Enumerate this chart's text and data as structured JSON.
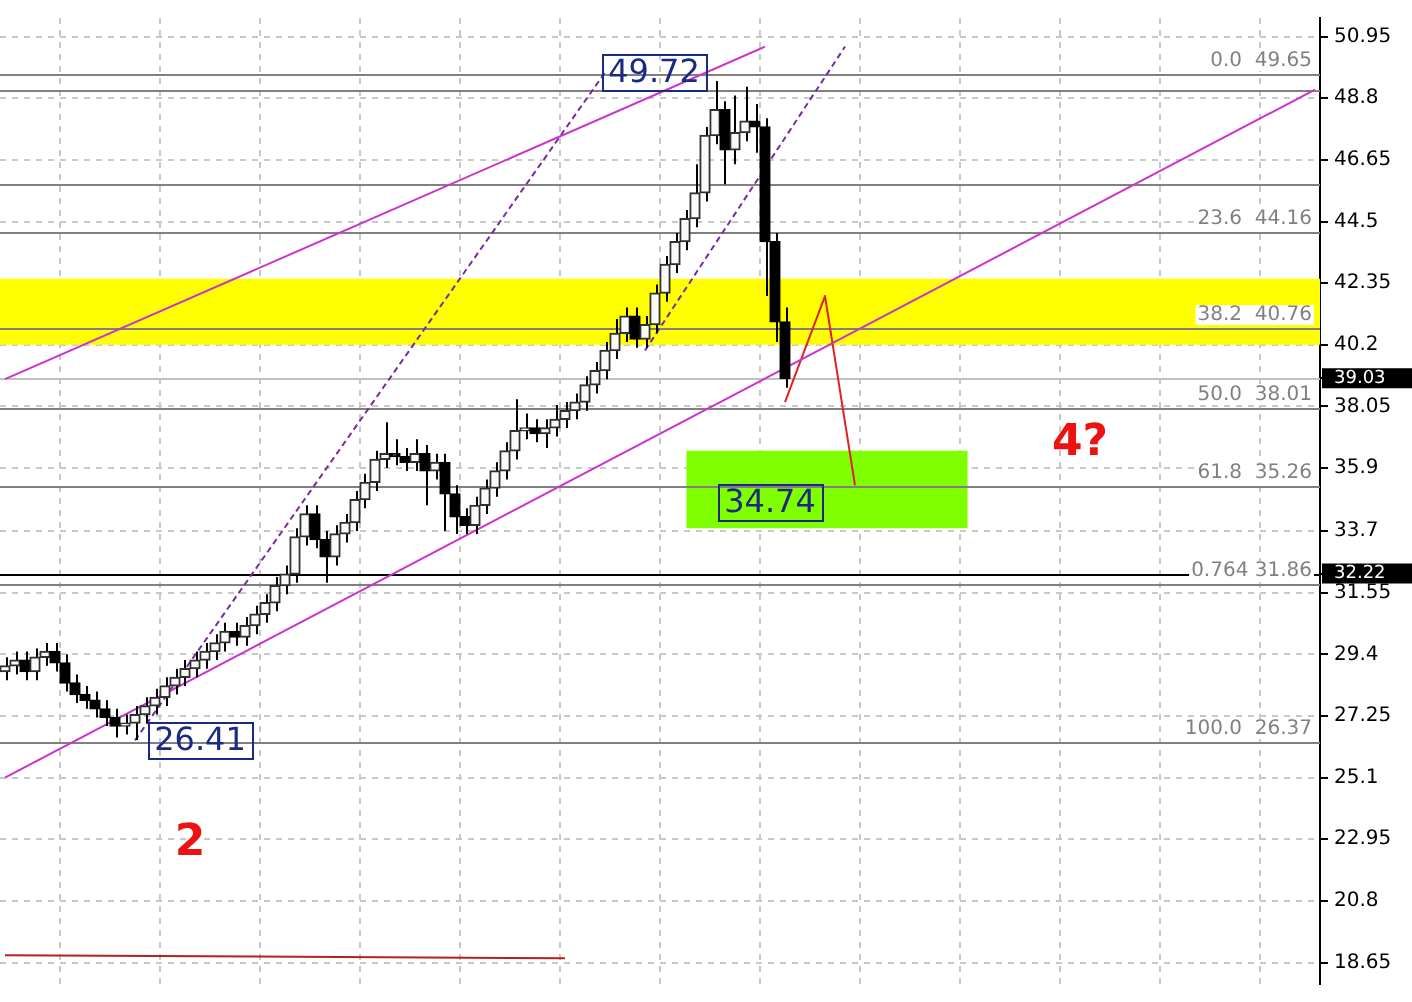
{
  "chart_data": {
    "type": "candlestick",
    "categories": [
      null,
      null,
      null,
      null,
      null,
      null,
      null,
      null,
      null,
      null,
      null,
      null,
      null,
      null,
      null,
      null,
      null,
      null,
      null,
      null,
      null,
      null,
      null,
      null,
      null,
      null,
      null,
      null,
      null,
      null,
      null,
      null,
      null,
      null,
      null,
      null,
      null,
      null,
      null,
      null,
      null,
      null,
      null,
      null,
      null,
      null,
      null,
      null,
      null,
      null,
      null,
      null,
      null,
      null,
      null,
      null,
      null,
      null,
      null,
      null,
      null,
      null,
      null,
      null,
      null,
      null,
      null,
      null,
      null,
      null,
      null,
      null,
      null,
      null,
      null,
      null,
      null,
      null,
      null,
      null,
      null,
      null,
      null,
      null,
      null,
      null,
      null,
      null,
      null,
      null,
      null,
      null,
      null,
      null,
      null,
      null,
      null,
      null,
      null,
      null,
      null,
      null,
      null,
      null,
      null,
      null,
      null,
      null,
      null,
      null,
      null,
      null,
      null,
      null,
      null,
      null,
      null,
      null,
      null,
      null,
      null,
      null,
      null,
      null,
      null,
      null,
      null,
      null,
      null,
      null,
      null,
      null
    ],
    "ohlc": [
      [
        28.8,
        29.3,
        28.5,
        29.0
      ],
      [
        29.0,
        29.5,
        28.7,
        29.2
      ],
      [
        29.2,
        29.5,
        28.5,
        28.8
      ],
      [
        28.8,
        29.6,
        28.5,
        29.3
      ],
      [
        29.3,
        29.8,
        29.0,
        29.5
      ],
      [
        29.5,
        29.8,
        28.8,
        29.1
      ],
      [
        29.1,
        29.4,
        28.1,
        28.4
      ],
      [
        28.4,
        28.7,
        27.7,
        28.0
      ],
      [
        28.0,
        28.3,
        27.5,
        27.8
      ],
      [
        27.8,
        28.1,
        27.2,
        27.5
      ],
      [
        27.5,
        27.8,
        26.9,
        27.2
      ],
      [
        27.2,
        27.5,
        26.5,
        26.9
      ],
      [
        26.9,
        27.3,
        26.6,
        27.0
      ],
      [
        27.0,
        27.6,
        26.41,
        27.3
      ],
      [
        27.3,
        27.9,
        27.0,
        27.6
      ],
      [
        27.6,
        28.2,
        27.3,
        27.9
      ],
      [
        27.9,
        28.6,
        27.6,
        28.3
      ],
      [
        28.3,
        28.9,
        28.0,
        28.6
      ],
      [
        28.6,
        29.2,
        28.3,
        28.9
      ],
      [
        28.9,
        29.5,
        28.6,
        29.2
      ],
      [
        29.2,
        29.8,
        28.9,
        29.5
      ],
      [
        29.5,
        30.1,
        29.2,
        29.8
      ],
      [
        29.8,
        30.5,
        29.5,
        30.2
      ],
      [
        30.2,
        30.5,
        29.7,
        30.0
      ],
      [
        30.0,
        30.7,
        29.7,
        30.4
      ],
      [
        30.4,
        31.1,
        30.1,
        30.8
      ],
      [
        30.8,
        31.5,
        30.5,
        31.2
      ],
      [
        31.2,
        32.1,
        30.9,
        31.8
      ],
      [
        31.8,
        32.5,
        31.5,
        32.2
      ],
      [
        32.2,
        33.8,
        31.9,
        33.5
      ],
      [
        33.5,
        34.6,
        33.2,
        34.3
      ],
      [
        34.3,
        34.6,
        33.1,
        33.4
      ],
      [
        33.4,
        33.7,
        31.9,
        32.8
      ],
      [
        32.8,
        33.9,
        32.5,
        33.6
      ],
      [
        33.6,
        34.3,
        33.3,
        34.0
      ],
      [
        34.0,
        35.1,
        33.7,
        34.8
      ],
      [
        34.8,
        35.7,
        34.5,
        35.4
      ],
      [
        35.4,
        36.5,
        35.1,
        36.2
      ],
      [
        36.2,
        37.5,
        35.9,
        36.4
      ],
      [
        36.4,
        36.9,
        36.0,
        36.3
      ],
      [
        36.3,
        36.6,
        35.8,
        36.1
      ],
      [
        36.1,
        36.9,
        35.8,
        36.4
      ],
      [
        36.4,
        36.7,
        34.6,
        35.8
      ],
      [
        35.8,
        36.4,
        35.5,
        36.1
      ],
      [
        36.1,
        36.4,
        33.7,
        35.0
      ],
      [
        35.0,
        35.3,
        33.6,
        34.2
      ],
      [
        34.2,
        34.5,
        33.6,
        33.9
      ],
      [
        33.9,
        34.9,
        33.6,
        34.6
      ],
      [
        34.6,
        35.5,
        34.3,
        35.2
      ],
      [
        35.2,
        36.1,
        34.9,
        35.8
      ],
      [
        35.8,
        36.8,
        35.5,
        36.5
      ],
      [
        36.5,
        38.3,
        36.2,
        37.2
      ],
      [
        37.2,
        37.8,
        36.9,
        37.3
      ],
      [
        37.3,
        37.6,
        36.8,
        37.1
      ],
      [
        37.1,
        37.6,
        36.6,
        37.3
      ],
      [
        37.3,
        38.1,
        37.0,
        37.6
      ],
      [
        37.6,
        38.2,
        37.3,
        37.9
      ],
      [
        37.9,
        38.5,
        37.6,
        38.2
      ],
      [
        38.2,
        39.1,
        37.9,
        38.8
      ],
      [
        38.8,
        39.6,
        38.5,
        39.3
      ],
      [
        39.3,
        40.3,
        39.0,
        40.0
      ],
      [
        40.0,
        41.1,
        39.7,
        40.6
      ],
      [
        40.6,
        41.5,
        40.3,
        41.2
      ],
      [
        41.2,
        41.5,
        40.1,
        40.4
      ],
      [
        40.4,
        41.2,
        40.1,
        40.9
      ],
      [
        40.9,
        42.3,
        40.6,
        42.0
      ],
      [
        42.0,
        43.3,
        41.7,
        43.0
      ],
      [
        43.0,
        44.1,
        42.7,
        43.8
      ],
      [
        43.8,
        44.9,
        43.5,
        44.6
      ],
      [
        44.6,
        46.5,
        44.3,
        45.5
      ],
      [
        45.5,
        47.8,
        45.2,
        47.5
      ],
      [
        47.5,
        49.4,
        47.2,
        48.4
      ],
      [
        48.4,
        48.7,
        45.8,
        47.0
      ],
      [
        47.0,
        48.9,
        46.5,
        47.6
      ],
      [
        47.6,
        49.2,
        47.3,
        48.0
      ],
      [
        48.0,
        48.6,
        46.9,
        47.8
      ],
      [
        47.8,
        48.1,
        41.9,
        43.8
      ],
      [
        43.8,
        44.1,
        40.3,
        41.0
      ],
      [
        41.0,
        41.5,
        38.7,
        39.03
      ],
      null,
      null,
      null,
      null,
      null,
      null,
      null,
      null,
      null,
      null,
      null,
      null,
      null,
      null,
      null,
      null,
      null,
      null,
      null,
      null,
      null,
      null,
      null,
      null,
      null,
      null,
      null,
      null,
      null,
      null,
      null,
      null,
      null,
      null,
      null,
      null,
      null,
      null,
      null,
      null,
      null,
      null,
      null,
      null,
      null,
      null,
      null,
      null,
      null,
      null,
      null,
      null,
      null
    ],
    "series": [
      {
        "type": "line",
        "color": "#cc33cc",
        "values": [
          25.1,
          null,
          null,
          null,
          null,
          null,
          null,
          null,
          null,
          null,
          null,
          null,
          null,
          null,
          null,
          null,
          null,
          null,
          null,
          null,
          null,
          null,
          null,
          null,
          null,
          null,
          null,
          null,
          null,
          null,
          null,
          null,
          null,
          null,
          null,
          null,
          null,
          null,
          null,
          null,
          null,
          null,
          null,
          null,
          null,
          null,
          null,
          null,
          null,
          null,
          null,
          null,
          null,
          null,
          null,
          null,
          null,
          null,
          null,
          null,
          null,
          null,
          null,
          null,
          null,
          null,
          null,
          null,
          null,
          null,
          null,
          null,
          null,
          null,
          null,
          null,
          null,
          null,
          null,
          null,
          null,
          null,
          null,
          null,
          null,
          null,
          null,
          null,
          null,
          null,
          null,
          null,
          null,
          null,
          null,
          null,
          null,
          null,
          null,
          null,
          null,
          null,
          null,
          null,
          null,
          null,
          null,
          null,
          null,
          null,
          null,
          null,
          null,
          null,
          null,
          null,
          null,
          null,
          null,
          null,
          null,
          null,
          null,
          null,
          null,
          null,
          null,
          null,
          null,
          null,
          null,
          49.1
        ]
      },
      {
        "type": "line",
        "color": "#cc33cc",
        "values": [
          39.0,
          null,
          null,
          null,
          null,
          null,
          null,
          null,
          null,
          null,
          null,
          null,
          null,
          null,
          null,
          null,
          null,
          null,
          null,
          null,
          null,
          null,
          null,
          null,
          null,
          null,
          null,
          null,
          null,
          null,
          null,
          null,
          null,
          null,
          null,
          null,
          null,
          null,
          null,
          null,
          null,
          null,
          null,
          null,
          null,
          null,
          null,
          null,
          null,
          null,
          null,
          null,
          null,
          null,
          null,
          null,
          null,
          null,
          null,
          null,
          null,
          null,
          null,
          null,
          null,
          null,
          null,
          null,
          null,
          null,
          null,
          null,
          null,
          null,
          null,
          null,
          50.6,
          null,
          null,
          null,
          null,
          null,
          null,
          null,
          null,
          null,
          null,
          null,
          null,
          null,
          null,
          null,
          null,
          null,
          null,
          null,
          null,
          null,
          null,
          null,
          null,
          null,
          null,
          null,
          null,
          null,
          null,
          null,
          null,
          null,
          null,
          null,
          null,
          null,
          null,
          null,
          null,
          null,
          null,
          null,
          null,
          null,
          null,
          null,
          null,
          null,
          null,
          null,
          null,
          null,
          null,
          null
        ]
      },
      {
        "type": "line",
        "color": "#7a2aa0",
        "line_style": "dashed",
        "values": [
          null,
          null,
          null,
          null,
          null,
          null,
          null,
          null,
          null,
          null,
          null,
          null,
          null,
          26.4,
          null,
          null,
          null,
          null,
          null,
          null,
          null,
          null,
          null,
          null,
          null,
          null,
          null,
          null,
          null,
          null,
          null,
          null,
          null,
          null,
          null,
          null,
          null,
          null,
          null,
          null,
          null,
          null,
          null,
          null,
          null,
          null,
          null,
          null,
          null,
          null,
          null,
          null,
          null,
          null,
          null,
          null,
          null,
          null,
          null,
          null,
          49.7,
          null,
          null,
          null,
          null,
          null,
          null,
          null,
          null,
          null,
          null,
          null,
          null,
          null,
          null,
          null,
          null,
          null,
          null,
          null,
          null,
          null,
          null,
          null,
          null,
          null,
          null,
          null,
          null,
          null,
          null,
          null,
          null,
          null,
          null,
          null,
          null,
          null,
          null,
          null,
          null,
          null,
          null,
          null,
          null,
          null,
          null,
          null,
          null,
          null,
          null,
          null,
          null,
          null,
          null,
          null,
          null,
          null,
          null,
          null,
          null,
          null,
          null,
          null,
          null,
          null,
          null,
          null,
          null,
          null,
          null,
          null
        ]
      },
      {
        "type": "line",
        "color": "#7a2aa0",
        "line_style": "dashed",
        "values": [
          null,
          null,
          null,
          null,
          null,
          null,
          null,
          null,
          null,
          null,
          null,
          null,
          null,
          null,
          null,
          null,
          null,
          null,
          null,
          null,
          null,
          null,
          null,
          null,
          null,
          null,
          null,
          null,
          null,
          null,
          null,
          null,
          null,
          null,
          null,
          null,
          null,
          null,
          null,
          null,
          null,
          null,
          null,
          null,
          null,
          null,
          null,
          null,
          null,
          null,
          null,
          null,
          null,
          null,
          null,
          null,
          null,
          null,
          null,
          null,
          null,
          null,
          null,
          null,
          40.0,
          null,
          null,
          null,
          null,
          null,
          null,
          null,
          null,
          null,
          null,
          null,
          null,
          null,
          null,
          null,
          null,
          null,
          null,
          null,
          50.6,
          null,
          null,
          null,
          null,
          null,
          null,
          null,
          null,
          null,
          null,
          null,
          null,
          null,
          null,
          null,
          null,
          null,
          null,
          null,
          null,
          null,
          null,
          null,
          null,
          null,
          null,
          null,
          null,
          null,
          null,
          null,
          null,
          null,
          null,
          null,
          null,
          null,
          null,
          null,
          null,
          null,
          null,
          null,
          null,
          null,
          null,
          null
        ]
      },
      {
        "type": "line",
        "color": "#dd2222",
        "values": [
          null,
          null,
          null,
          null,
          null,
          null,
          null,
          null,
          null,
          null,
          null,
          null,
          null,
          null,
          null,
          null,
          null,
          null,
          null,
          null,
          null,
          null,
          null,
          null,
          null,
          null,
          null,
          null,
          null,
          null,
          null,
          null,
          null,
          null,
          null,
          null,
          null,
          null,
          null,
          null,
          null,
          null,
          null,
          null,
          null,
          null,
          null,
          null,
          null,
          null,
          null,
          null,
          null,
          null,
          null,
          null,
          null,
          null,
          null,
          null,
          null,
          null,
          null,
          null,
          null,
          null,
          null,
          null,
          null,
          null,
          null,
          null,
          null,
          null,
          null,
          null,
          null,
          null,
          38.2,
          null,
          null,
          null,
          41.9,
          null,
          null,
          35.3,
          null,
          null,
          null,
          null,
          null,
          null,
          null,
          null,
          null,
          null,
          null,
          null,
          null,
          null,
          null,
          null,
          null,
          null,
          null,
          null,
          null,
          null,
          null,
          null,
          null,
          null,
          null,
          null,
          null,
          null,
          null,
          null,
          null,
          null,
          null,
          null,
          null,
          null,
          null,
          null,
          null,
          null,
          null,
          null,
          null,
          null
        ]
      },
      {
        "type": "line",
        "color": "#b22222",
        "values": [
          18.9,
          null,
          null,
          null,
          null,
          null,
          null,
          null,
          null,
          null,
          null,
          null,
          null,
          null,
          null,
          null,
          null,
          null,
          null,
          null,
          null,
          null,
          null,
          null,
          null,
          null,
          null,
          null,
          null,
          null,
          null,
          null,
          null,
          null,
          null,
          null,
          null,
          null,
          null,
          null,
          null,
          null,
          null,
          null,
          null,
          null,
          null,
          null,
          null,
          null,
          null,
          null,
          null,
          null,
          null,
          null,
          18.8,
          null,
          null,
          null,
          null,
          null,
          null,
          null,
          null,
          null,
          null,
          null,
          null,
          null,
          null,
          null,
          null,
          null,
          null,
          null,
          null,
          null,
          null,
          null,
          null,
          null,
          null,
          null,
          null,
          null,
          null,
          null,
          null,
          null,
          null,
          null,
          null,
          null,
          null,
          null,
          null,
          null,
          null,
          null,
          null,
          null,
          null,
          null,
          null,
          null,
          null,
          null,
          null,
          null,
          null,
          null,
          null,
          null,
          null,
          null,
          null,
          null,
          null,
          null,
          null,
          null,
          null,
          null,
          null,
          null,
          null,
          null,
          null,
          null,
          null,
          null
        ]
      }
    ],
    "ylim": [
      17.9,
      51.6
    ],
    "yticks": [
      18.65,
      20.8,
      22.95,
      25.1,
      27.25,
      29.4,
      31.55,
      {
        "value": 32.22,
        "label": "32.22"
      },
      33.7,
      35.9,
      38.05,
      {
        "value": 39.03,
        "label": "39.03"
      },
      40.2,
      42.35,
      44.5,
      46.65,
      48.8,
      50.95
    ],
    "ref_lines": [
      {
        "axis": "y",
        "value": 49.65,
        "label": "0.0  49.65",
        "color": "#808080"
      },
      {
        "axis": "y",
        "value": 49.1,
        "color": "#808080"
      },
      {
        "axis": "y",
        "value": 45.8,
        "color": "#808080"
      },
      {
        "axis": "y",
        "value": 44.16,
        "label": "23.6  44.16",
        "color": "#808080"
      },
      {
        "axis": "y",
        "value": 40.76,
        "label": "38.2  40.76",
        "color": "#808080"
      },
      {
        "axis": "y",
        "value": 39.03,
        "color": "#c0c0c0"
      },
      {
        "axis": "y",
        "value": 38.01,
        "label": "50.0  38.01",
        "color": "#808080"
      },
      {
        "axis": "y",
        "value": 35.26,
        "label": "61.8  35.26",
        "color": "#808080"
      },
      {
        "axis": "y",
        "value": 32.22,
        "color": "#000000"
      },
      {
        "axis": "y",
        "value": 31.86,
        "label": "0.764 31.86",
        "color": "#808080"
      },
      {
        "axis": "y",
        "value": 26.37,
        "label": "100.0  26.37",
        "color": "#808080"
      }
    ],
    "bands": [
      {
        "axis": "y",
        "from": 40.2,
        "to": 42.5,
        "color": "#ffff00"
      },
      {
        "axis": "y",
        "from": 33.8,
        "to": 36.5,
        "color": "#80ff00"
      }
    ],
    "annotations": [
      {
        "text": "49.72",
        "y": 49.72
      },
      {
        "text": "26.41",
        "y": 26.41
      },
      "34.74",
      "2",
      "4?"
    ],
    "grid": true,
    "legend": false,
    "marker": "none",
    "tick_labels": "y"
  }
}
